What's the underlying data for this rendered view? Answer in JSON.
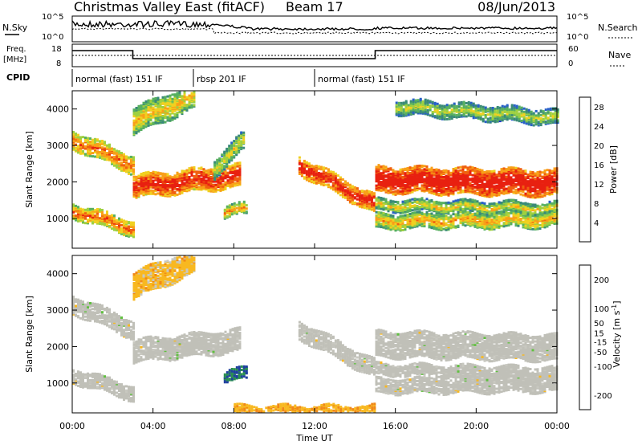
{
  "header": {
    "station": "Christmas Valley East (fitACF)",
    "beam": "Beam 17",
    "date": "08/Jun/2013"
  },
  "nsky_panel": {
    "left_label": "N.Sky",
    "right_label": "N.Search",
    "left_ticks": [
      "10^5",
      "10^0"
    ],
    "right_ticks": [
      "10^5",
      "10^0"
    ]
  },
  "freq_panel": {
    "left_label_1": "Freq.",
    "left_label_2": "[MHz]",
    "right_label": "Nave",
    "left_ticks": [
      "18",
      "8"
    ],
    "right_ticks": [
      "60",
      "0"
    ]
  },
  "cpid": {
    "label": "CPID",
    "segments": [
      {
        "label": "normal (fast) 151 IF",
        "start_h": 0,
        "end_h": 6
      },
      {
        "label": "rbsp 201 IF",
        "start_h": 6,
        "end_h": 12
      },
      {
        "label": "normal (fast) 151 IF",
        "start_h": 12,
        "end_h": 24
      }
    ]
  },
  "chart_data": [
    {
      "type": "heatmap",
      "title": "Power [dB]",
      "ylabel": "Slant Range [km]",
      "xlabel": "Time UT",
      "x_ticks": [
        "00:00",
        "04:00",
        "08:00",
        "12:00",
        "16:00",
        "20:00",
        "00:00"
      ],
      "y_ticks": [
        1000,
        2000,
        3000,
        4000
      ],
      "xlim_h": [
        0,
        24
      ],
      "ylim_km": [
        180,
        4500
      ],
      "colorbar": {
        "label": "Power [dB]",
        "ticks": [
          4,
          8,
          12,
          16,
          20,
          24,
          28
        ],
        "range": [
          0,
          30
        ],
        "colors": [
          "#1420e0",
          "#2860c8",
          "#3a8a78",
          "#58b060",
          "#9ed040",
          "#f0d020",
          "#f8a018",
          "#f06010",
          "#e82010"
        ]
      },
      "echo_bands": [
        {
          "t0": 0.0,
          "t1": 3.0,
          "r0": 1250,
          "r1": 750,
          "w": 200,
          "level": 0.55
        },
        {
          "t0": 0.0,
          "t1": 3.0,
          "r0": 3200,
          "r1": 2500,
          "w": 250,
          "level": 0.55
        },
        {
          "t0": 3.0,
          "t1": 8.3,
          "r0": 1900,
          "r1": 2200,
          "w": 300,
          "level": 0.75
        },
        {
          "t0": 3.0,
          "t1": 6.0,
          "r0": 3700,
          "r1": 4400,
          "w": 350,
          "level": 0.35
        },
        {
          "t0": 7.0,
          "t1": 8.5,
          "r0": 2400,
          "r1": 3200,
          "w": 250,
          "level": 0.25
        },
        {
          "t0": 7.5,
          "t1": 8.6,
          "r0": 1200,
          "r1": 1300,
          "w": 150,
          "level": 0.45
        },
        {
          "t0": 11.2,
          "t1": 15.0,
          "r0": 2500,
          "r1": 1400,
          "w": 250,
          "level": 0.75
        },
        {
          "t0": 15.0,
          "t1": 24.0,
          "r0": 2100,
          "r1": 2000,
          "w": 350,
          "level": 0.85
        },
        {
          "t0": 15.0,
          "t1": 24.0,
          "r0": 1400,
          "r1": 1300,
          "w": 150,
          "level": 0.3
        },
        {
          "t0": 15.0,
          "t1": 24.0,
          "r0": 950,
          "r1": 1000,
          "w": 200,
          "level": 0.4
        },
        {
          "t0": 16.0,
          "t1": 24.0,
          "r0": 4100,
          "r1": 3800,
          "w": 200,
          "level": 0.2
        }
      ]
    },
    {
      "type": "heatmap",
      "title": "Velocity [m s^-1]",
      "ylabel": "Slant Range [km]",
      "xlabel": "Time UT",
      "x_ticks": [
        "00:00",
        "04:00",
        "08:00",
        "12:00",
        "16:00",
        "20:00",
        "00:00"
      ],
      "y_ticks": [
        1000,
        2000,
        3000,
        4000
      ],
      "xlim_h": [
        0,
        24
      ],
      "ylim_km": [
        180,
        4500
      ],
      "colorbar": {
        "label": "Velocity [m s^-1]",
        "ticks": [
          200,
          100,
          50,
          15,
          -15,
          -50,
          -100,
          -200
        ],
        "range": [
          -250,
          250
        ],
        "colors": [
          "#e01010",
          "#f05010",
          "#f08818",
          "#f8b820",
          "#c8c8c0",
          "#60c040",
          "#2a9050",
          "#2040a0",
          "#1020d0"
        ]
      },
      "ground_scatter_color": "#c0c0b8",
      "echo_bands": [
        {
          "t0": 0.0,
          "t1": 3.0,
          "r0": 1250,
          "r1": 750,
          "w": 200,
          "vel": 0
        },
        {
          "t0": 0.0,
          "t1": 3.0,
          "r0": 3200,
          "r1": 2500,
          "w": 250,
          "vel": 0
        },
        {
          "t0": 3.0,
          "t1": 8.3,
          "r0": 1900,
          "r1": 2200,
          "w": 300,
          "vel": 0
        },
        {
          "t0": 3.0,
          "t1": 6.0,
          "r0": 3700,
          "r1": 4400,
          "w": 350,
          "vel": -60
        },
        {
          "t0": 7.5,
          "t1": 8.6,
          "r0": 1200,
          "r1": 1300,
          "w": 150,
          "vel": 150
        },
        {
          "t0": 11.2,
          "t1": 15.0,
          "r0": 2500,
          "r1": 1400,
          "w": 250,
          "vel": 0
        },
        {
          "t0": 15.0,
          "t1": 24.0,
          "r0": 2100,
          "r1": 2000,
          "w": 350,
          "vel": 0
        },
        {
          "t0": 15.0,
          "t1": 24.0,
          "r0": 1400,
          "r1": 1300,
          "w": 150,
          "vel": 0
        },
        {
          "t0": 15.0,
          "t1": 24.0,
          "r0": 950,
          "r1": 1000,
          "w": 200,
          "vel": 0
        },
        {
          "t0": 8.0,
          "t1": 15.0,
          "r0": 250,
          "r1": 250,
          "w": 150,
          "vel": -80
        }
      ]
    }
  ]
}
